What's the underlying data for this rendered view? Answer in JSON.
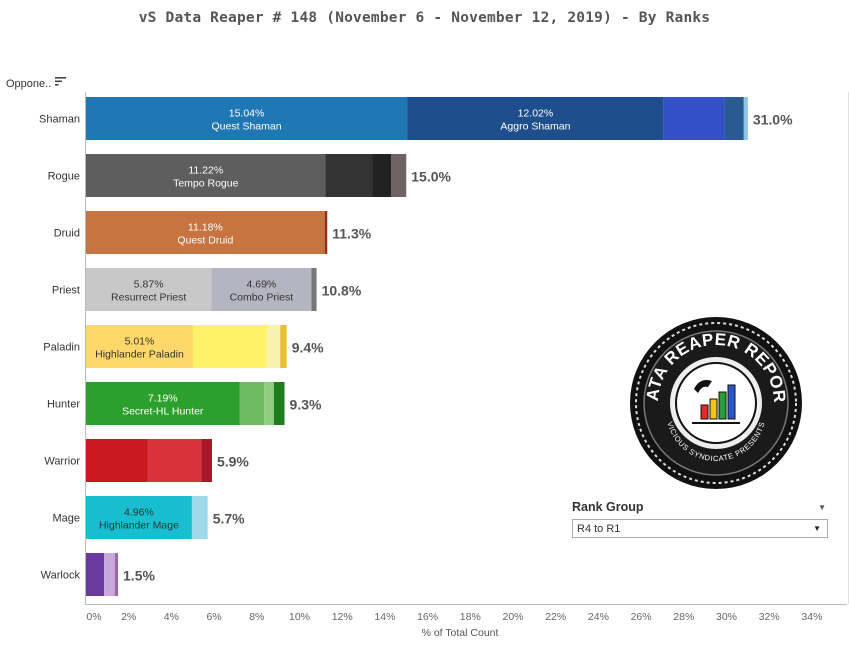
{
  "title": "vS Data Reaper #  148 (November 6 - November 12, 2019) - By Ranks",
  "field_header": "Oppone..",
  "filter": {
    "title": "Rank Group",
    "selected": "R4 to R1"
  },
  "logo": {
    "text_top": "DATA REAPER REPORT",
    "text_bottom": "VICIOUS SYNDICATE PRESENTS"
  },
  "chart_data": {
    "type": "bar",
    "orientation": "horizontal",
    "stacked": true,
    "title": "vS Data Reaper #  148 (November 6 - November 12, 2019) - By Ranks",
    "xlabel": "% of Total Count",
    "ylabel": "",
    "xlim": [
      0,
      34
    ],
    "x_ticks": [
      "0%",
      "2%",
      "4%",
      "6%",
      "8%",
      "10%",
      "12%",
      "14%",
      "16%",
      "18%",
      "20%",
      "22%",
      "24%",
      "26%",
      "28%",
      "30%",
      "32%",
      "34%"
    ],
    "grid": false,
    "categories": [
      "Shaman",
      "Rogue",
      "Druid",
      "Priest",
      "Paladin",
      "Hunter",
      "Warrior",
      "Mage",
      "Warlock"
    ],
    "totals": [
      "31.0%",
      "15.0%",
      "11.3%",
      "10.8%",
      "9.4%",
      "9.3%",
      "5.9%",
      "5.7%",
      "1.5%"
    ],
    "rows": [
      {
        "class": "Shaman",
        "segments": [
          {
            "value": 15.04,
            "color": "#1f77b4",
            "pct": "15.04%",
            "name": "Quest Shaman",
            "text_color": "#ffffff"
          },
          {
            "value": 12.02,
            "color": "#1f4e8c",
            "pct": "12.02%",
            "name": "Aggro Shaman",
            "text_color": "#ffffff"
          },
          {
            "value": 2.85,
            "color": "#3350c8"
          },
          {
            "value": 0.9,
            "color": "#2a5a92"
          },
          {
            "value": 0.19,
            "color": "#8cc5e8"
          }
        ]
      },
      {
        "class": "Rogue",
        "segments": [
          {
            "value": 11.22,
            "color": "#5e5e5e",
            "pct": "11.22%",
            "name": "Tempo Rogue",
            "text_color": "#ffffff"
          },
          {
            "value": 2.2,
            "color": "#333333"
          },
          {
            "value": 0.88,
            "color": "#222222"
          },
          {
            "value": 0.7,
            "color": "#6e6262"
          }
        ]
      },
      {
        "class": "Druid",
        "segments": [
          {
            "value": 11.18,
            "color": "#c87441",
            "pct": "11.18%",
            "name": "Quest Druid",
            "text_color": "#ffffff"
          },
          {
            "value": 0.12,
            "color": "#8e3316"
          }
        ]
      },
      {
        "class": "Priest",
        "segments": [
          {
            "value": 5.87,
            "color": "#c8c8c8",
            "pct": "5.87%",
            "name": "Resurrect Priest",
            "text_color": "#333333"
          },
          {
            "value": 4.69,
            "color": "#b5b5c1",
            "pct": "4.69%",
            "name": "Combo Priest",
            "text_color": "#333333"
          },
          {
            "value": 0.24,
            "color": "#777777"
          }
        ]
      },
      {
        "class": "Paladin",
        "segments": [
          {
            "value": 5.01,
            "color": "#ffd86b",
            "pct": "5.01%",
            "name": "Highlander Paladin",
            "text_color": "#333333"
          },
          {
            "value": 3.45,
            "color": "#fff266"
          },
          {
            "value": 0.64,
            "color": "#f7f2b0"
          },
          {
            "value": 0.3,
            "color": "#e8c030"
          }
        ]
      },
      {
        "class": "Hunter",
        "segments": [
          {
            "value": 7.19,
            "color": "#2ca02c",
            "pct": "7.19%",
            "name": "Secret-HL Hunter",
            "text_color": "#ffffff"
          },
          {
            "value": 1.15,
            "color": "#6dbb5e"
          },
          {
            "value": 0.46,
            "color": "#8fce80"
          },
          {
            "value": 0.5,
            "color": "#1e7e1e"
          }
        ]
      },
      {
        "class": "Warrior",
        "segments": [
          {
            "value": 2.9,
            "color": "#c9181f"
          },
          {
            "value": 2.5,
            "color": "#d9323a"
          },
          {
            "value": 0.5,
            "color": "#a8162a"
          }
        ]
      },
      {
        "class": "Mage",
        "segments": [
          {
            "value": 4.96,
            "color": "#17becf",
            "pct": "4.96%",
            "name": "Highlander Mage",
            "text_color": "#333333"
          },
          {
            "value": 0.74,
            "color": "#9dd9e8"
          }
        ]
      },
      {
        "class": "Warlock",
        "segments": [
          {
            "value": 0.85,
            "color": "#6a3aa0"
          },
          {
            "value": 0.5,
            "color": "#c8a8d8"
          },
          {
            "value": 0.15,
            "color": "#9a6aa8"
          }
        ]
      }
    ]
  }
}
